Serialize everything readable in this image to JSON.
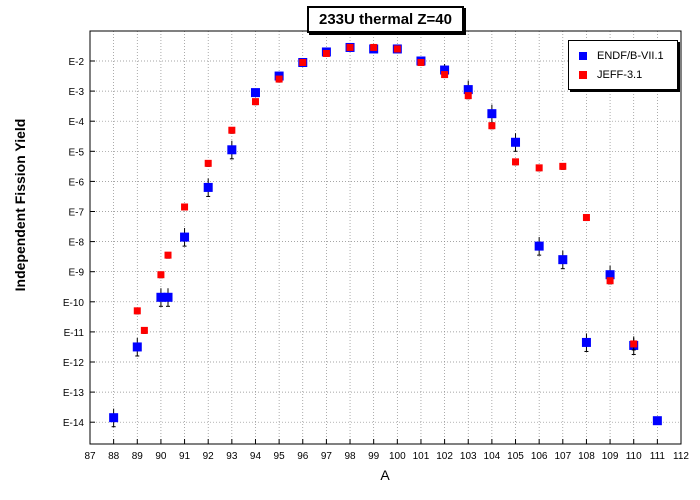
{
  "chart_data": {
    "type": "scatter",
    "title": "233U thermal Z=40",
    "xlabel": "A",
    "ylabel": "Independent Fission Yield",
    "xlim": [
      87,
      112
    ],
    "ylim_exponent": [
      -14.6,
      -1.55
    ],
    "y_scale": "log",
    "x_ticks": [
      "87",
      "88",
      "89",
      "90",
      "91",
      "92",
      "93",
      "94",
      "95",
      "96",
      "97",
      "98",
      "99",
      "100",
      "101",
      "102",
      "103",
      "104",
      "105",
      "106",
      "107",
      "108",
      "109",
      "110",
      "111",
      "112"
    ],
    "y_ticks": [
      "E-2",
      "E-3",
      "E-4",
      "E-5",
      "E-6",
      "E-7",
      "E-8",
      "E-9",
      "E-10",
      "E-11",
      "E-12",
      "E-13",
      "E-14"
    ],
    "grid": true,
    "legend_position": "top-right",
    "series": [
      {
        "name": "ENDF/B-VII.1",
        "color": "#0000ff",
        "marker": "square",
        "x": [
          88,
          89,
          90,
          90.3,
          91,
          92,
          93,
          94,
          95,
          96,
          97,
          98,
          99,
          100,
          101,
          102,
          103,
          104,
          105,
          106,
          107,
          108,
          109,
          110,
          111
        ],
        "y_exponent": [
          -13.85,
          -11.5,
          -9.85,
          -9.85,
          -7.85,
          -6.2,
          -4.95,
          -3.05,
          -2.5,
          -2.05,
          -1.7,
          -1.55,
          -1.6,
          -1.6,
          -2.0,
          -2.3,
          -2.95,
          -3.75,
          -4.7,
          -8.15,
          -8.6,
          -11.35,
          -9.1,
          -11.45,
          -13.95
        ],
        "y_err_exponent": [
          0.3,
          0.3,
          0.3,
          0.3,
          0.3,
          0.3,
          0.3,
          0.1,
          0.1,
          0.05,
          0.05,
          0.1,
          0.05,
          0.05,
          0.1,
          0.2,
          0.3,
          0.3,
          0.3,
          0.3,
          0.3,
          0.3,
          0.3,
          0.3,
          0.1
        ]
      },
      {
        "name": "JEFF-3.1",
        "color": "#ff0000",
        "marker": "square-small",
        "x": [
          89,
          89.3,
          90,
          90.3,
          91,
          92,
          93,
          94,
          95,
          96,
          97,
          98,
          99,
          100,
          101,
          102,
          103,
          104,
          105,
          106,
          107,
          108,
          109,
          110
        ],
        "y_exponent": [
          -10.3,
          -10.95,
          -9.1,
          -8.45,
          -6.85,
          -5.4,
          -4.3,
          -3.35,
          -2.6,
          -2.05,
          -1.75,
          -1.55,
          -1.55,
          -1.6,
          -2.05,
          -2.45,
          -3.15,
          -4.15,
          -5.35,
          -5.55,
          -5.5,
          -7.2,
          -9.3,
          -11.4
        ],
        "y_err_exponent": [
          0.1,
          0.1,
          0.1,
          0.1,
          0.1,
          0.1,
          0.1,
          0.1,
          0.1,
          0.05,
          0.05,
          0.1,
          0.05,
          0.05,
          0.05,
          0.1,
          0.1,
          0.1,
          0.1,
          0.1,
          0.1,
          0.1,
          0.1,
          0.2
        ]
      }
    ]
  }
}
